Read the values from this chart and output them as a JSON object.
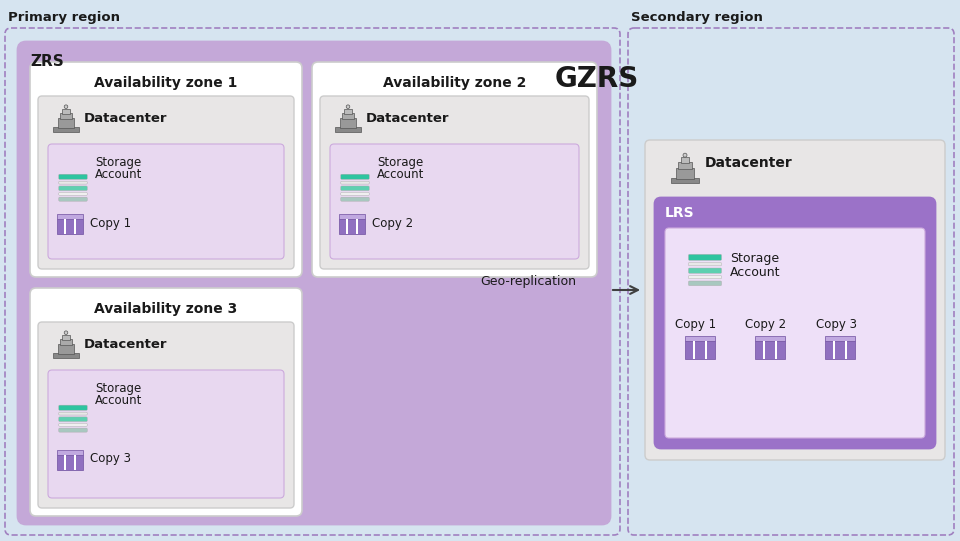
{
  "primary_region_label": "Primary region",
  "secondary_region_label": "Secondary region",
  "zrs_label": "ZRS",
  "gzrs_label": "GZRS",
  "lrs_label": "LRS",
  "geo_replication_label": "Geo-replication",
  "datacenter_label": "Datacenter",
  "storage_account_label": [
    "Storage",
    "Account"
  ],
  "availability_zones": [
    "Availability zone 1",
    "Availability zone 2",
    "Availability zone 3"
  ],
  "copy_labels_primary": [
    "Copy 1",
    "Copy 2",
    "Copy 3"
  ],
  "copy_labels_secondary": [
    "Copy 1",
    "Copy 2",
    "Copy 3"
  ],
  "colors": {
    "light_blue_bg": "#d6e4f0",
    "primary_region_bg": "#d6e4f0",
    "secondary_region_bg": "#d6e4f0",
    "zrs_box_fill": "#c4a8d8",
    "avail_zone_box_fill": "#ffffff",
    "avail_zone_box_edge": "#cccccc",
    "datacenter_box_fill": "#e8e6e6",
    "datacenter_box_edge": "#cccccc",
    "storage_inner_fill": "#e8d8f0",
    "storage_inner_edge": "#ccaadd",
    "lrs_box_fill": "#9b72c8",
    "lrs_inner_fill": "#eee0f8",
    "lrs_inner_edge": "#ccaadd",
    "secondary_dc_fill": "#e8e6e6",
    "secondary_dc_edge": "#cccccc",
    "dashed_border_color": "#a080c0",
    "arrow_color": "#404040",
    "text_dark": "#1a1a1a",
    "teal_top": "#2ec4a0",
    "teal_mid": "#5dd0b0",
    "teal_gray": "#a8c8c0",
    "purple_icon_dark": "#7050a0",
    "purple_icon_mid": "#9070c0",
    "purple_icon_light": "#c0a8e0",
    "storage_gray": "#d0d0d0"
  }
}
